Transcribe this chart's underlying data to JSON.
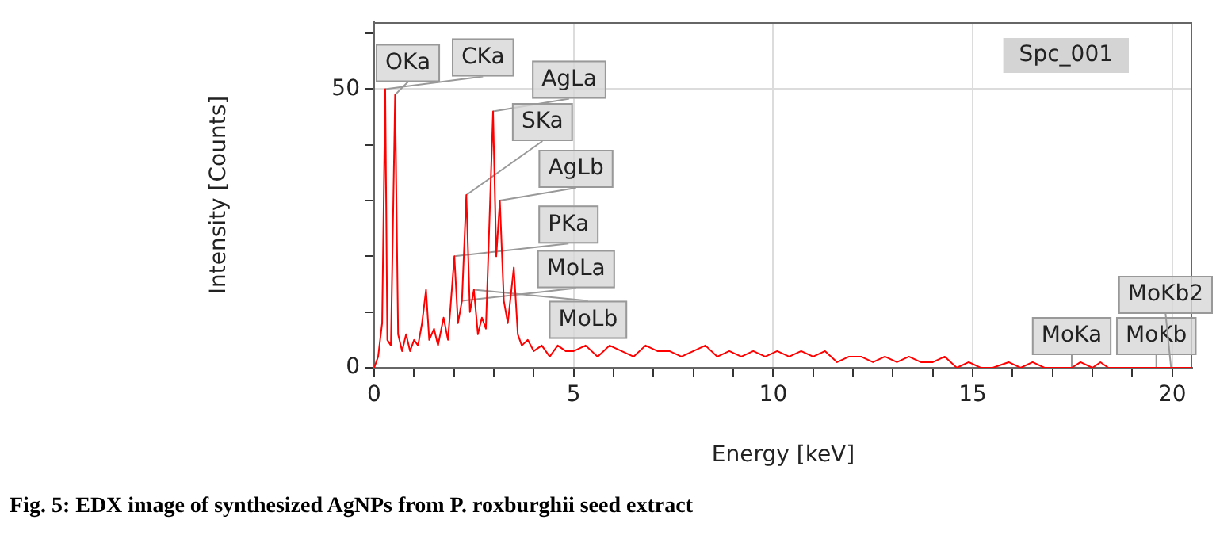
{
  "chart_data": {
    "type": "line",
    "xlabel": "Energy [keV]",
    "ylabel": "Intensity [Counts]",
    "xlim": [
      0,
      20.5
    ],
    "xticks": [
      0,
      {
        "value": 1,
        "label": null
      },
      {
        "value": 2,
        "label": null
      },
      {
        "value": 3,
        "label": null
      },
      {
        "value": 4,
        "label": null
      },
      5,
      {
        "value": 6,
        "label": null
      },
      {
        "value": 7,
        "label": null
      },
      {
        "value": 8,
        "label": null
      },
      {
        "value": 9,
        "label": null
      },
      10,
      {
        "value": 11,
        "label": null
      },
      {
        "value": 12,
        "label": null
      },
      {
        "value": 13,
        "label": null
      },
      {
        "value": 14,
        "label": null
      },
      15,
      {
        "value": 16,
        "label": null
      },
      {
        "value": 17,
        "label": null
      },
      {
        "value": 18,
        "label": null
      },
      {
        "value": 19,
        "label": null
      },
      20
    ],
    "ylim": [
      0,
      62
    ],
    "yticks": [
      0,
      {
        "value": 10,
        "label": null
      },
      {
        "value": 20,
        "label": null
      },
      {
        "value": 30,
        "label": null
      },
      {
        "value": 40,
        "label": null
      },
      50,
      {
        "value": 60,
        "label": null
      }
    ],
    "grid": true,
    "legend": false,
    "marker": "none",
    "line_style": "solid",
    "series": [
      {
        "color": "#ff0000",
        "x": [
          0,
          0.1,
          0.2,
          0.277,
          0.33,
          0.42,
          0.525,
          0.6,
          0.7,
          0.8,
          0.9,
          1.0,
          1.1,
          1.2,
          1.3,
          1.38,
          1.5,
          1.6,
          1.74,
          1.85,
          2.01,
          2.1,
          2.2,
          2.31,
          2.4,
          2.5,
          2.6,
          2.7,
          2.8,
          2.98,
          3.06,
          3.15,
          3.25,
          3.35,
          3.5,
          3.6,
          3.7,
          3.85,
          4.0,
          4.2,
          4.4,
          4.6,
          4.8,
          5.0,
          5.3,
          5.6,
          5.9,
          6.2,
          6.5,
          6.8,
          7.1,
          7.4,
          7.7,
          8.0,
          8.3,
          8.6,
          8.9,
          9.2,
          9.5,
          9.8,
          10.1,
          10.4,
          10.7,
          11.0,
          11.3,
          11.6,
          11.9,
          12.2,
          12.5,
          12.8,
          13.1,
          13.4,
          13.7,
          14.0,
          14.3,
          14.6,
          14.9,
          15.2,
          15.5,
          15.9,
          16.2,
          16.5,
          16.8,
          17.1,
          17.48,
          17.7,
          18.0,
          18.2,
          18.4,
          19.0,
          20.5
        ],
        "values": [
          0,
          2,
          8,
          50,
          5,
          4,
          49,
          6,
          3,
          6,
          3,
          5,
          4,
          8,
          14,
          5,
          7,
          4,
          9,
          5,
          20,
          8,
          12,
          31,
          10,
          14,
          6,
          9,
          7,
          46,
          20,
          30,
          12,
          8,
          18,
          6,
          4,
          5,
          3,
          4,
          2,
          4,
          3,
          3,
          4,
          2,
          4,
          3,
          2,
          4,
          3,
          3,
          2,
          3,
          4,
          2,
          3,
          2,
          3,
          2,
          3,
          2,
          3,
          2,
          3,
          1,
          2,
          2,
          1,
          2,
          1,
          2,
          1,
          1,
          2,
          0,
          1,
          0,
          0,
          1,
          0,
          1,
          0,
          0,
          0,
          1,
          0,
          1,
          0,
          0,
          0
        ]
      }
    ],
    "annotations": [
      "Spc_001",
      {
        "text": "OKa",
        "x": 0.525,
        "y": 49
      },
      {
        "text": "CKa",
        "x": 0.277,
        "y": 50
      },
      {
        "text": "AgLa",
        "x": 2.98,
        "y": 46
      },
      {
        "text": "AgLb",
        "x": 3.15,
        "y": 30
      },
      {
        "text": "SKa",
        "x": 2.31,
        "y": 31
      },
      {
        "text": "PKa",
        "x": 2.01,
        "y": 20
      },
      {
        "text": "MoLa",
        "x": 2.2,
        "y": 12
      },
      {
        "text": "MoLb",
        "x": 2.5,
        "y": 14
      },
      {
        "text": "MoKa",
        "x": 17.48,
        "y": 0
      },
      {
        "text": "MoKb",
        "x": 19.6,
        "y": 0
      },
      {
        "text": "MoKb2",
        "x": 19.97,
        "y": 0
      },
      "Fig. 5: EDX image of synthesized AgNPs from P. roxburghii seed extract"
    ]
  }
}
